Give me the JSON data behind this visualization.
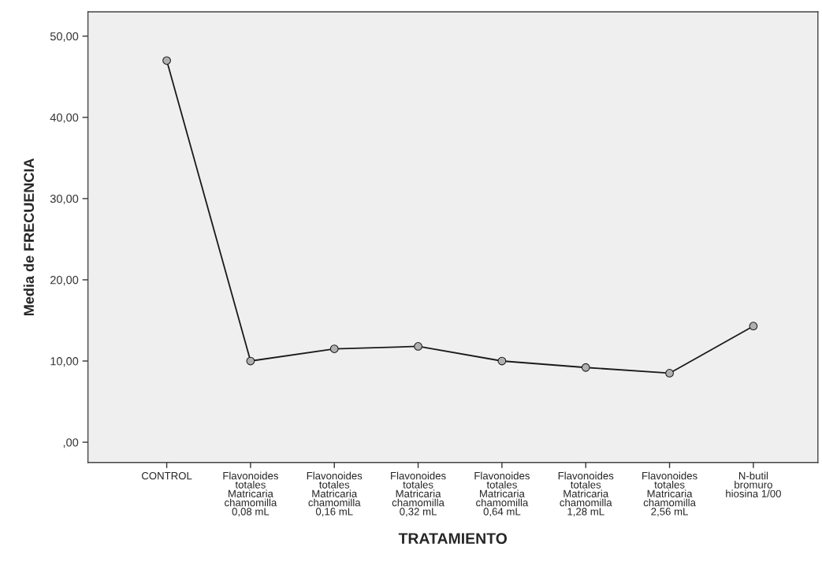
{
  "chart_data": {
    "type": "line",
    "xlabel": "TRATAMIENTO",
    "ylabel": "Media de FRECUENCIA",
    "categories": [
      "CONTROL",
      "Flavonoides\ntotales\nMatricaria\nchamomilla\n0,08 mL",
      "Flavonoides\ntotales\nMatricaria\nchamomilla\n0,16 mL",
      "Flavonoides\ntotales\nMatricaria\nchamomilla\n0,32 mL",
      "Flavonoides\ntotales\nMatricaria\nchamomilla\n0,64 mL",
      "Flavonoides\ntotales\nMatricaria\nchamomilla\n1,28 mL",
      "Flavonoides\ntotales\nMatricaria\nchamomilla\n2,56 mL",
      "N-butil\nbromuro\nhiosina 1/00"
    ],
    "series": [
      {
        "color": "#1a1a1a",
        "values": [
          47.0,
          10.0,
          11.5,
          11.8,
          10.0,
          9.2,
          8.5,
          14.3
        ]
      }
    ],
    "ylim": [
      -2.5,
      53.0
    ],
    "yticks": [
      {
        "value": 0,
        "label": ",00"
      },
      {
        "value": 10,
        "label": "10,00"
      },
      {
        "value": 20,
        "label": "20,00"
      },
      {
        "value": 30,
        "label": "30,00"
      },
      {
        "value": 40,
        "label": "40,00"
      },
      {
        "value": 50,
        "label": "50,00"
      }
    ],
    "marker": "circle",
    "line_style": "solid",
    "grid": false
  }
}
